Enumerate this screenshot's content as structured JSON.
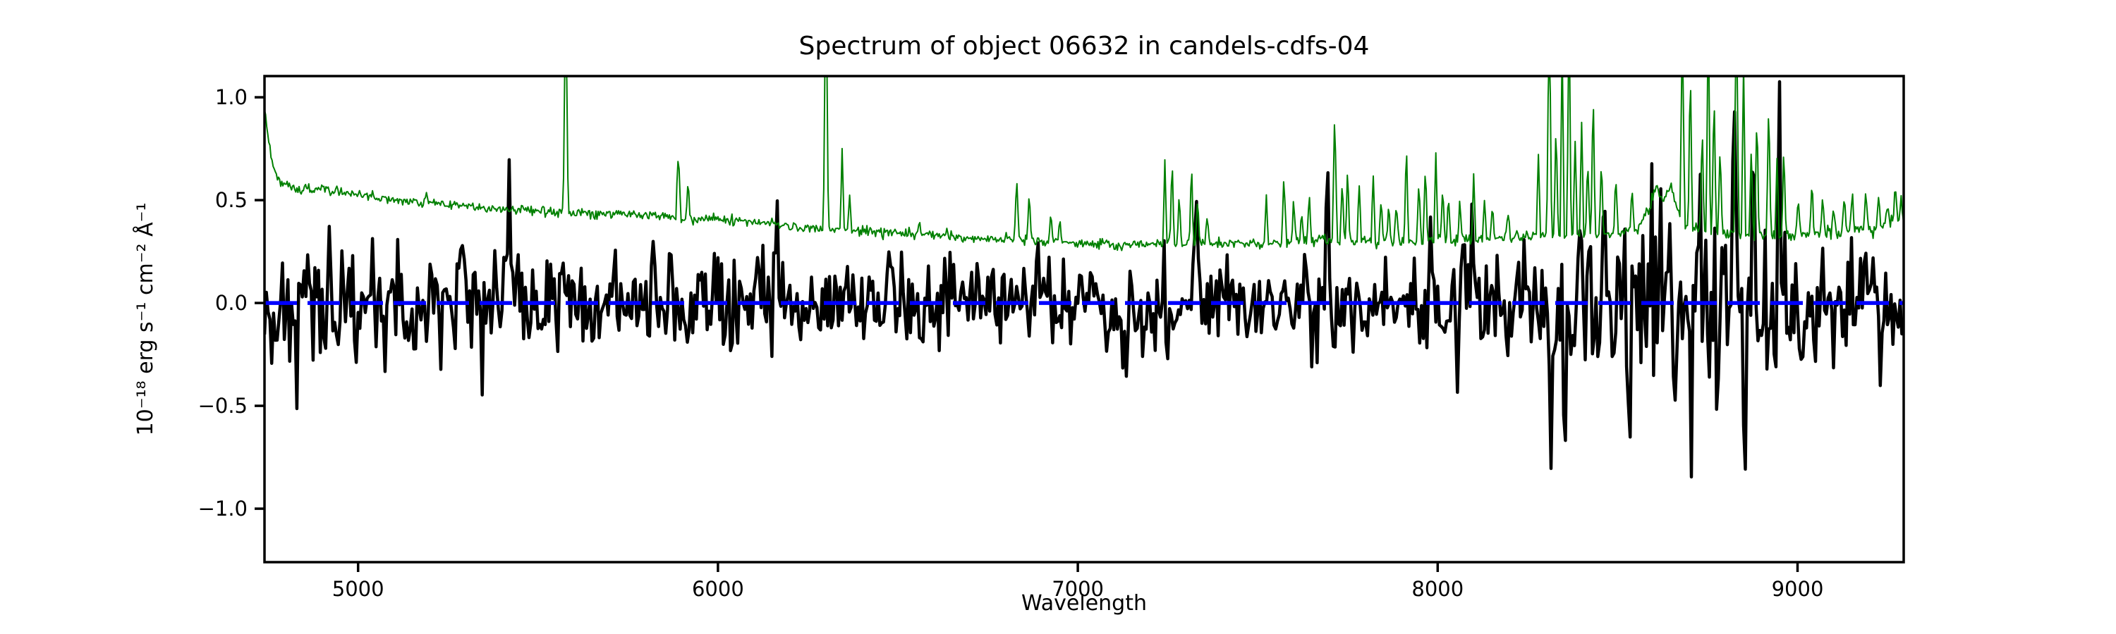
{
  "figure": {
    "background": "#ffffff"
  },
  "chart_data": {
    "type": "line",
    "title": "Spectrum of object 06632 in candels-cdfs-04",
    "xlabel": "Wavelength",
    "ylabel": "10⁻¹⁸ erg s⁻¹ cm⁻² Å⁻¹",
    "xlim": [
      4740,
      9295
    ],
    "ylim": [
      -1.26,
      1.103
    ],
    "grid": false,
    "legend": null,
    "axes_color": "#000000",
    "background_color": "#ffffff",
    "xticks": {
      "values": [
        5000,
        6000,
        7000,
        8000,
        9000
      ],
      "labels": [
        "5000",
        "6000",
        "7000",
        "8000",
        "9000"
      ]
    },
    "yticks": {
      "values": [
        1.0,
        0.5,
        0.0,
        -0.5,
        -1.0
      ],
      "labels": [
        "1.0",
        "0.5",
        "0.0",
        "−0.5",
        "−1.0"
      ]
    },
    "series": [
      {
        "name": "black_spectrum",
        "description": "noisy object flux spectrum around zero",
        "color": "#000000",
        "linewidth": 4.5,
        "step": 5,
        "seed": 42,
        "sigma_points": [
          [
            4740,
            0.16
          ],
          [
            5000,
            0.15
          ],
          [
            5300,
            0.15
          ],
          [
            5600,
            0.13
          ],
          [
            6000,
            0.12
          ],
          [
            6400,
            0.115
          ],
          [
            6800,
            0.11
          ],
          [
            7200,
            0.115
          ],
          [
            7600,
            0.12
          ],
          [
            8000,
            0.13
          ],
          [
            8250,
            0.17
          ],
          [
            8500,
            0.18
          ],
          [
            8750,
            0.22
          ],
          [
            8950,
            0.2
          ],
          [
            9050,
            0.15
          ],
          [
            9295,
            0.13
          ]
        ],
        "features": [
          [
            5284,
            0.55,
            10
          ],
          [
            5420,
            0.45,
            9
          ],
          [
            6163,
            0.42,
            9
          ],
          [
            6890,
            0.42,
            9
          ],
          [
            7330,
            0.48,
            9
          ],
          [
            7693,
            0.58,
            10
          ],
          [
            7980,
            0.45,
            9
          ],
          [
            8093,
            0.5,
            9
          ],
          [
            8313,
            -0.85,
            9
          ],
          [
            8353,
            -0.62,
            8
          ],
          [
            8393,
            0.55,
            8
          ],
          [
            8432,
            -0.75,
            8
          ],
          [
            8465,
            0.45,
            8
          ],
          [
            8530,
            -0.5,
            8
          ],
          [
            8592,
            0.55,
            8
          ],
          [
            8660,
            -0.5,
            8
          ],
          [
            8700,
            -0.55,
            8
          ],
          [
            8745,
            0.45,
            8
          ],
          [
            8825,
            0.85,
            8
          ],
          [
            8853,
            -1.05,
            8
          ],
          [
            8880,
            0.92,
            8
          ],
          [
            8950,
            0.68,
            8
          ],
          [
            9230,
            -0.3,
            8
          ]
        ]
      },
      {
        "name": "green_error_spectrum",
        "description": "noise / sky error spectrum with emission spikes, clipped at plot top",
        "color": "#008000",
        "linewidth": 2,
        "step": 3,
        "seed": 1337,
        "jitter": 0.012,
        "baseline_points": [
          [
            4740,
            0.93
          ],
          [
            4748,
            0.84
          ],
          [
            4758,
            0.72
          ],
          [
            4772,
            0.62
          ],
          [
            4790,
            0.575
          ],
          [
            4830,
            0.56
          ],
          [
            4900,
            0.55
          ],
          [
            5000,
            0.53
          ],
          [
            5100,
            0.5
          ],
          [
            5200,
            0.485
          ],
          [
            5300,
            0.47
          ],
          [
            5400,
            0.455
          ],
          [
            5500,
            0.45
          ],
          [
            5600,
            0.44
          ],
          [
            5700,
            0.432
          ],
          [
            5800,
            0.424
          ],
          [
            5900,
            0.415
          ],
          [
            6000,
            0.405
          ],
          [
            6100,
            0.39
          ],
          [
            6200,
            0.375
          ],
          [
            6300,
            0.362
          ],
          [
            6400,
            0.35
          ],
          [
            6500,
            0.34
          ],
          [
            6600,
            0.328
          ],
          [
            6700,
            0.318
          ],
          [
            6800,
            0.308
          ],
          [
            6900,
            0.3
          ],
          [
            7000,
            0.29
          ],
          [
            7100,
            0.283
          ],
          [
            7200,
            0.287
          ],
          [
            7300,
            0.29
          ],
          [
            7400,
            0.287
          ],
          [
            7500,
            0.29
          ],
          [
            7600,
            0.293
          ],
          [
            7700,
            0.3
          ],
          [
            7800,
            0.297
          ],
          [
            7900,
            0.3
          ],
          [
            8000,
            0.303
          ],
          [
            8100,
            0.31
          ],
          [
            8200,
            0.32
          ],
          [
            8300,
            0.33
          ],
          [
            8450,
            0.332
          ],
          [
            8550,
            0.345
          ],
          [
            8585,
            0.44
          ],
          [
            8605,
            0.56
          ],
          [
            8625,
            0.5
          ],
          [
            8648,
            0.57
          ],
          [
            8668,
            0.44
          ],
          [
            8690,
            0.37
          ],
          [
            8750,
            0.35
          ],
          [
            8800,
            0.335
          ],
          [
            8900,
            0.325
          ],
          [
            9000,
            0.33
          ],
          [
            9100,
            0.34
          ],
          [
            9200,
            0.36
          ],
          [
            9295,
            0.4
          ]
        ],
        "spikes": [
          [
            5190,
            0.53,
            6
          ],
          [
            5577,
            1.6,
            7
          ],
          [
            5890,
            0.75,
            7
          ],
          [
            5917,
            0.6,
            6
          ],
          [
            6300,
            1.7,
            7
          ],
          [
            6345,
            0.75,
            6
          ],
          [
            6366,
            0.52,
            6
          ],
          [
            6560,
            0.4,
            6
          ],
          [
            6830,
            0.6,
            7
          ],
          [
            6865,
            0.56,
            6
          ],
          [
            6925,
            0.45,
            6
          ],
          [
            6950,
            0.42,
            6
          ],
          [
            7242,
            0.68,
            6
          ],
          [
            7262,
            0.7,
            6
          ],
          [
            7282,
            0.54,
            6
          ],
          [
            7316,
            0.68,
            6
          ],
          [
            7333,
            0.52,
            6
          ],
          [
            7360,
            0.44,
            6
          ],
          [
            7524,
            0.52,
            6
          ],
          [
            7573,
            0.62,
            7
          ],
          [
            7600,
            0.52,
            6
          ],
          [
            7622,
            0.48,
            6
          ],
          [
            7643,
            0.53,
            6
          ],
          [
            7714,
            0.93,
            7
          ],
          [
            7735,
            0.6,
            6
          ],
          [
            7750,
            0.68,
            6
          ],
          [
            7782,
            0.58,
            6
          ],
          [
            7821,
            0.62,
            6
          ],
          [
            7843,
            0.52,
            6
          ],
          [
            7864,
            0.48,
            6
          ],
          [
            7885,
            0.52,
            6
          ],
          [
            7913,
            0.78,
            6
          ],
          [
            7948,
            0.6,
            6
          ],
          [
            7966,
            0.68,
            6
          ],
          [
            7995,
            0.72,
            6
          ],
          [
            8014,
            0.58,
            6
          ],
          [
            8030,
            0.52,
            6
          ],
          [
            8062,
            0.52,
            6
          ],
          [
            8100,
            0.62,
            6
          ],
          [
            8130,
            0.5,
            6
          ],
          [
            8152,
            0.48,
            6
          ],
          [
            8195,
            0.45,
            6
          ],
          [
            8280,
            0.72,
            6
          ],
          [
            8310,
            1.5,
            7
          ],
          [
            8329,
            0.9,
            6
          ],
          [
            8346,
            1.3,
            6
          ],
          [
            8365,
            1.5,
            6
          ],
          [
            8382,
            0.8,
            6
          ],
          [
            8400,
            0.88,
            6
          ],
          [
            8417,
            0.7,
            6
          ],
          [
            8432,
            1.05,
            6
          ],
          [
            8455,
            0.72,
            6
          ],
          [
            8495,
            0.62,
            6
          ],
          [
            8540,
            0.58,
            6
          ],
          [
            8680,
            1.35,
            7
          ],
          [
            8702,
            1.15,
            6
          ],
          [
            8735,
            0.88,
            6
          ],
          [
            8752,
            1.45,
            6
          ],
          [
            8768,
            1.05,
            6
          ],
          [
            8785,
            0.78,
            6
          ],
          [
            8830,
            1.55,
            7
          ],
          [
            8850,
            1.15,
            6
          ],
          [
            8872,
            0.78,
            6
          ],
          [
            8887,
            0.95,
            6
          ],
          [
            8920,
            1.0,
            6
          ],
          [
            8943,
            0.7,
            6
          ],
          [
            8962,
            0.78,
            6
          ],
          [
            9002,
            0.52,
            6
          ],
          [
            9040,
            0.58,
            6
          ],
          [
            9070,
            0.52,
            6
          ],
          [
            9100,
            0.48,
            6
          ],
          [
            9130,
            0.52,
            6
          ],
          [
            9152,
            0.55,
            6
          ],
          [
            9190,
            0.58,
            6
          ],
          [
            9225,
            0.52,
            6
          ],
          [
            9250,
            0.48,
            6
          ],
          [
            9272,
            0.58,
            6
          ],
          [
            9288,
            0.52,
            6
          ]
        ],
        "clipped_at_top": true
      },
      {
        "name": "blue_zero_line",
        "description": "horizontal dashed reference line at flux = 0",
        "color": "#0000ff",
        "linewidth": 5.5,
        "style": "dashed",
        "y": 0.0
      }
    ]
  }
}
